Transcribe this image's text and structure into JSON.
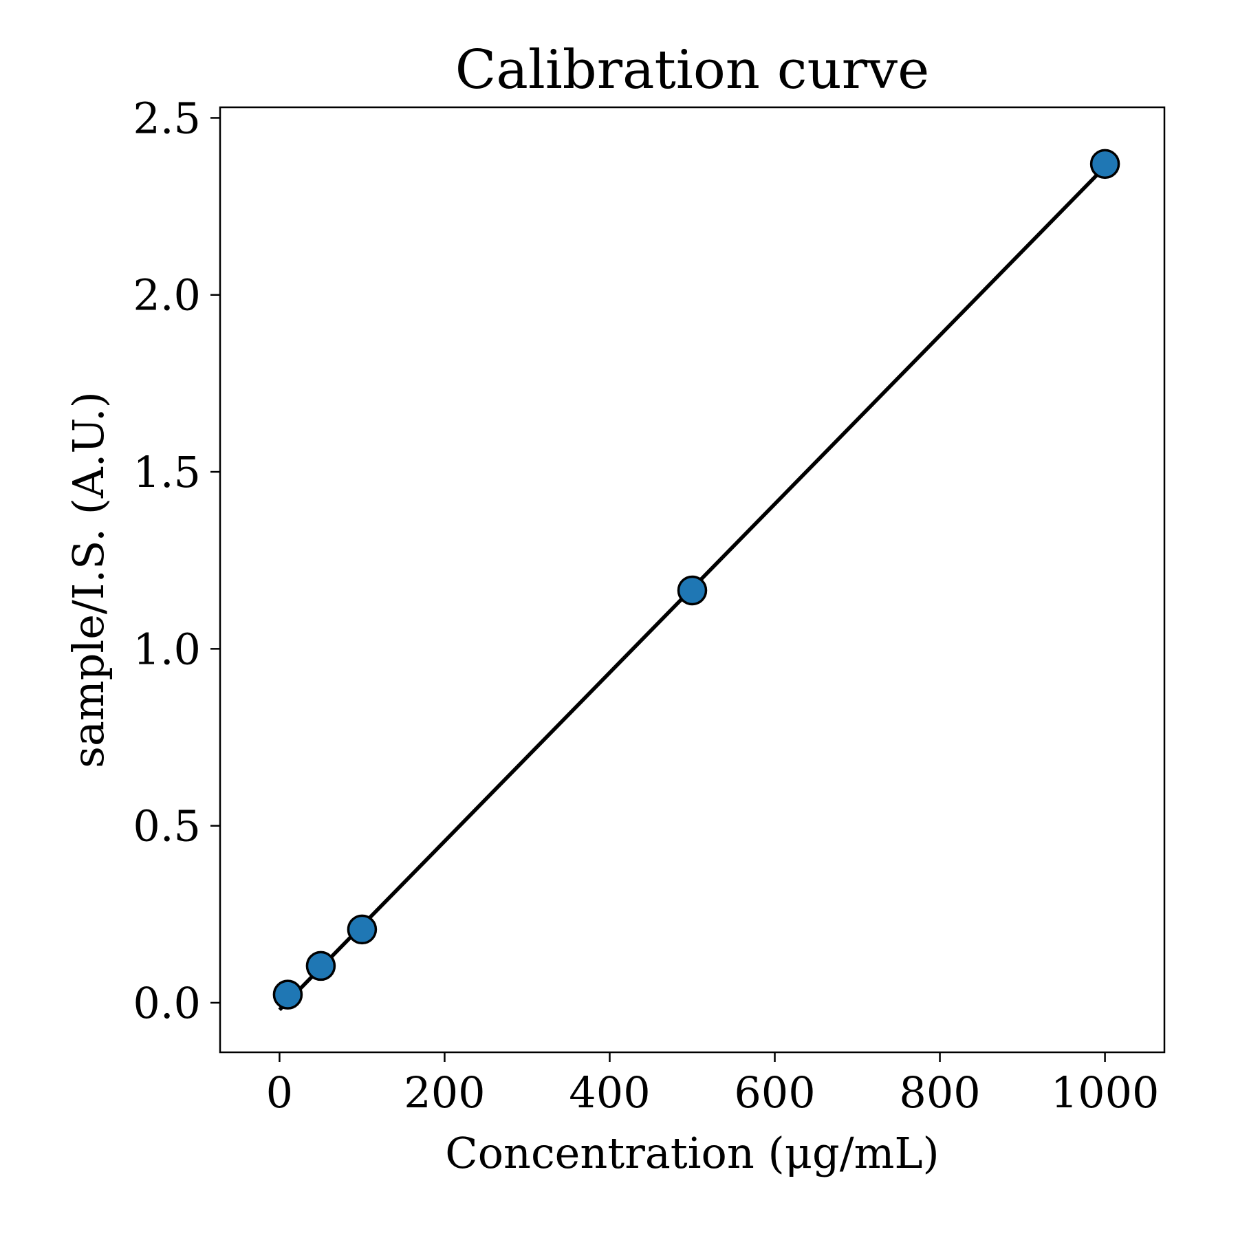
{
  "chart_data": {
    "type": "scatter",
    "title": "Calibration curve",
    "xlabel": "Concentration (μg/mL)",
    "ylabel": "sample/I.S. (A.U.)",
    "xlim": [
      -72,
      1072
    ],
    "ylim": [
      -0.14,
      2.53
    ],
    "xticks": [
      0,
      200,
      400,
      600,
      800,
      1000
    ],
    "xtick_labels": [
      "0",
      "200",
      "400",
      "600",
      "800",
      "1000"
    ],
    "yticks": [
      0.0,
      0.5,
      1.0,
      1.5,
      2.0,
      2.5
    ],
    "ytick_labels": [
      "0.0",
      "0.5",
      "1.0",
      "1.5",
      "2.0",
      "2.5"
    ],
    "grid": false,
    "legend": "none",
    "series": [
      {
        "kind": "points",
        "color": "#1f77b4",
        "edge_color": "#000000",
        "x": [
          10,
          50,
          100,
          500,
          1000
        ],
        "y": [
          0.023,
          0.104,
          0.207,
          1.165,
          2.37
        ]
      },
      {
        "kind": "fit-line",
        "color": "#000000",
        "x": [
          0,
          1000
        ],
        "y": [
          -0.02,
          2.362
        ]
      }
    ]
  }
}
